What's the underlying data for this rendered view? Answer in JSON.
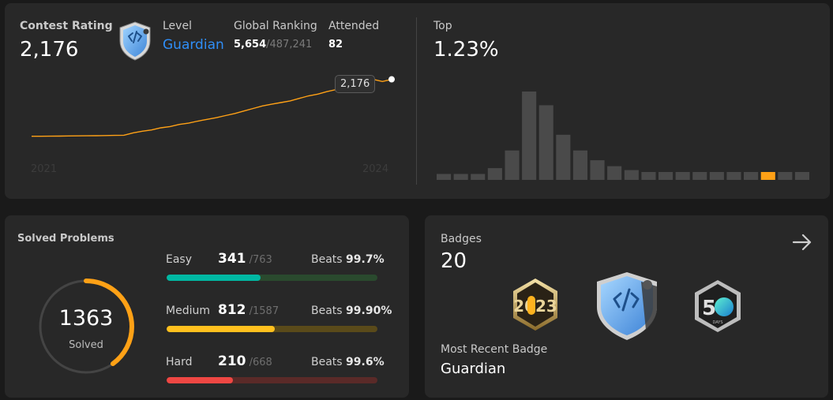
{
  "contest": {
    "rating_label": "Contest Rating",
    "rating_value": "2,176",
    "level_label": "Level",
    "level_value": "Guardian",
    "global_ranking_label": "Global Ranking",
    "global_rank": "5,654",
    "global_total": "/487,241",
    "attended_label": "Attended",
    "attended_value": "82",
    "tooltip_value": "2,176",
    "x_start_label": "2021",
    "x_end_label": "2024",
    "top_label": "Top",
    "top_value": "1.23%",
    "colors": {
      "line": "#ffa116",
      "level": "#2f8ef7",
      "highlight_bar": "#ffa116",
      "bar": "#4a4a4a"
    }
  },
  "chart_data": [
    {
      "type": "line",
      "title": "",
      "x_start": "2021",
      "x_end": "2024",
      "xlabel": "",
      "ylabel": "",
      "y": [
        1500,
        1500,
        1501,
        1502,
        1503,
        1504,
        1505,
        1506,
        1508,
        1510,
        1512,
        1540,
        1560,
        1575,
        1600,
        1615,
        1640,
        1655,
        1680,
        1700,
        1720,
        1745,
        1770,
        1800,
        1830,
        1860,
        1880,
        1900,
        1920,
        1950,
        1980,
        2000,
        2030,
        2055,
        2080,
        2110,
        2150,
        2176,
        2150,
        2176
      ],
      "highlight": "2,176"
    },
    {
      "type": "bar",
      "title": "",
      "values": [
        3,
        3,
        3,
        6,
        15,
        45,
        38,
        23,
        15,
        10,
        7,
        5,
        4,
        4,
        4,
        4,
        4,
        4,
        4,
        4,
        4,
        4
      ],
      "highlight_index": 19
    }
  ],
  "solved": {
    "title": "Solved Problems",
    "count": "1363",
    "count_label": "Solved",
    "fraction_solved": 0.4,
    "difficulties": [
      {
        "label": "Easy",
        "solved": "341",
        "total": "/763",
        "beats_label": "Beats",
        "beats": "99.7%",
        "fraction": 0.447,
        "fg": "#00b8a3",
        "bg": "#2a4a2e"
      },
      {
        "label": "Medium",
        "solved": "812",
        "total": "/1587",
        "beats_label": "Beats",
        "beats": "99.90%",
        "fraction": 0.512,
        "fg": "#ffc01e",
        "bg": "#5a4a1a"
      },
      {
        "label": "Hard",
        "solved": "210",
        "total": "/668",
        "beats_label": "Beats",
        "beats": "99.6%",
        "fraction": 0.314,
        "fg": "#ef4743",
        "bg": "#5a2a28"
      }
    ]
  },
  "badges": {
    "label": "Badges",
    "count": "20",
    "recent_label": "Most Recent Badge",
    "recent_value": "Guardian",
    "days_label": "DAYS",
    "icons": [
      "2023-annual-badge-icon",
      "guardian-badge-icon",
      "50-days-badge-icon"
    ]
  }
}
